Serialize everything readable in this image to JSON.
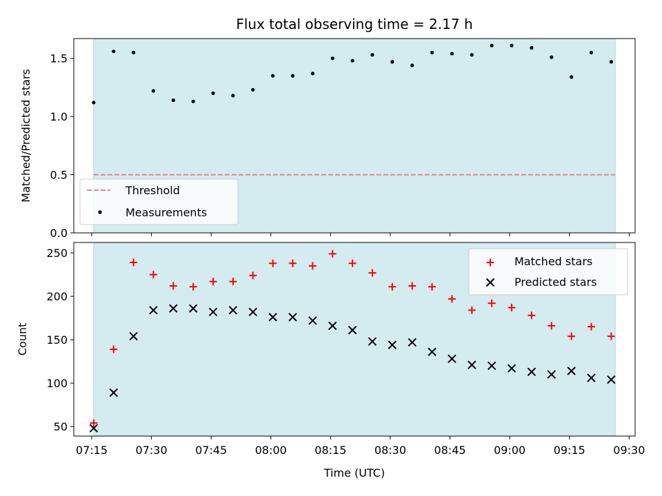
{
  "title": "Flux total observing time = 2.17 h",
  "colors": {
    "band": "#d4ebf0",
    "threshold": "#ef7f7f",
    "matched": "#ff0000",
    "predicted": "#000000",
    "measurement": "#000000"
  },
  "chart_data": [
    {
      "type": "scatter",
      "ylabel": "Matched/Predicted stars",
      "xlabel": "",
      "ylim": [
        0,
        1.67
      ],
      "yticks": [
        "0.0",
        "0.5",
        "1.0",
        "1.5"
      ],
      "xlim": [
        "07:10:30",
        "09:31:30"
      ],
      "shaded_interval": [
        "07:15:30",
        "09:26:30"
      ],
      "legend": {
        "placement": "lower-left",
        "entries": [
          "Threshold",
          "Measurements"
        ]
      },
      "threshold": {
        "name": "Threshold",
        "value": 0.5
      },
      "series": [
        {
          "name": "Measurements",
          "marker": "dot",
          "x": [
            "07:15:30",
            "07:20:30",
            "07:25:30",
            "07:30:30",
            "07:35:30",
            "07:40:30",
            "07:45:30",
            "07:50:30",
            "07:55:30",
            "08:00:30",
            "08:05:30",
            "08:10:30",
            "08:15:30",
            "08:20:30",
            "08:25:30",
            "08:30:30",
            "08:35:30",
            "08:40:30",
            "08:45:30",
            "08:50:30",
            "08:55:30",
            "09:00:30",
            "09:05:30",
            "09:10:30",
            "09:15:30",
            "09:20:30",
            "09:25:30"
          ],
          "values": [
            1.12,
            1.56,
            1.55,
            1.22,
            1.14,
            1.13,
            1.2,
            1.18,
            1.23,
            1.35,
            1.35,
            1.37,
            1.5,
            1.48,
            1.53,
            1.47,
            1.44,
            1.55,
            1.54,
            1.53,
            1.61,
            1.61,
            1.59,
            1.51,
            1.34,
            1.55,
            1.47
          ]
        }
      ]
    },
    {
      "type": "scatter",
      "ylabel": "Count",
      "xlabel": "Time (UTC)",
      "ylim": [
        39,
        262
      ],
      "yticks": [
        "50",
        "100",
        "150",
        "200",
        "250"
      ],
      "xlim": [
        "07:10:30",
        "09:31:30"
      ],
      "xticks": [
        "07:15",
        "07:30",
        "07:45",
        "08:00",
        "08:15",
        "08:30",
        "08:45",
        "09:00",
        "09:15",
        "09:30"
      ],
      "shaded_interval": [
        "07:15:30",
        "09:26:30"
      ],
      "legend": {
        "placement": "top-right",
        "entries": [
          "Matched stars",
          "Predicted stars"
        ]
      },
      "series": [
        {
          "name": "Matched stars",
          "marker": "plus",
          "x": [
            "07:15:30",
            "07:20:30",
            "07:25:30",
            "07:30:30",
            "07:35:30",
            "07:40:30",
            "07:45:30",
            "07:50:30",
            "07:55:30",
            "08:00:30",
            "08:05:30",
            "08:10:30",
            "08:15:30",
            "08:20:30",
            "08:25:30",
            "08:30:30",
            "08:35:30",
            "08:40:30",
            "08:45:30",
            "08:50:30",
            "08:55:30",
            "09:00:30",
            "09:05:30",
            "09:10:30",
            "09:15:30",
            "09:20:30",
            "09:25:30"
          ],
          "values": [
            54,
            139,
            239,
            225,
            212,
            211,
            217,
            217,
            224,
            238,
            238,
            235,
            249,
            238,
            227,
            211,
            212,
            211,
            197,
            184,
            192,
            187,
            178,
            166,
            154,
            165,
            154
          ]
        },
        {
          "name": "Predicted stars",
          "marker": "x",
          "x": [
            "07:15:30",
            "07:20:30",
            "07:25:30",
            "07:30:30",
            "07:35:30",
            "07:40:30",
            "07:45:30",
            "07:50:30",
            "07:55:30",
            "08:00:30",
            "08:05:30",
            "08:10:30",
            "08:15:30",
            "08:20:30",
            "08:25:30",
            "08:30:30",
            "08:35:30",
            "08:40:30",
            "08:45:30",
            "08:50:30",
            "08:55:30",
            "09:00:30",
            "09:05:30",
            "09:10:30",
            "09:15:30",
            "09:20:30",
            "09:25:30"
          ],
          "values": [
            48,
            89,
            154,
            184,
            186,
            186,
            182,
            184,
            182,
            176,
            176,
            172,
            166,
            161,
            148,
            144,
            147,
            136,
            128,
            121,
            120,
            117,
            113,
            110,
            114,
            106,
            104
          ]
        }
      ]
    }
  ]
}
